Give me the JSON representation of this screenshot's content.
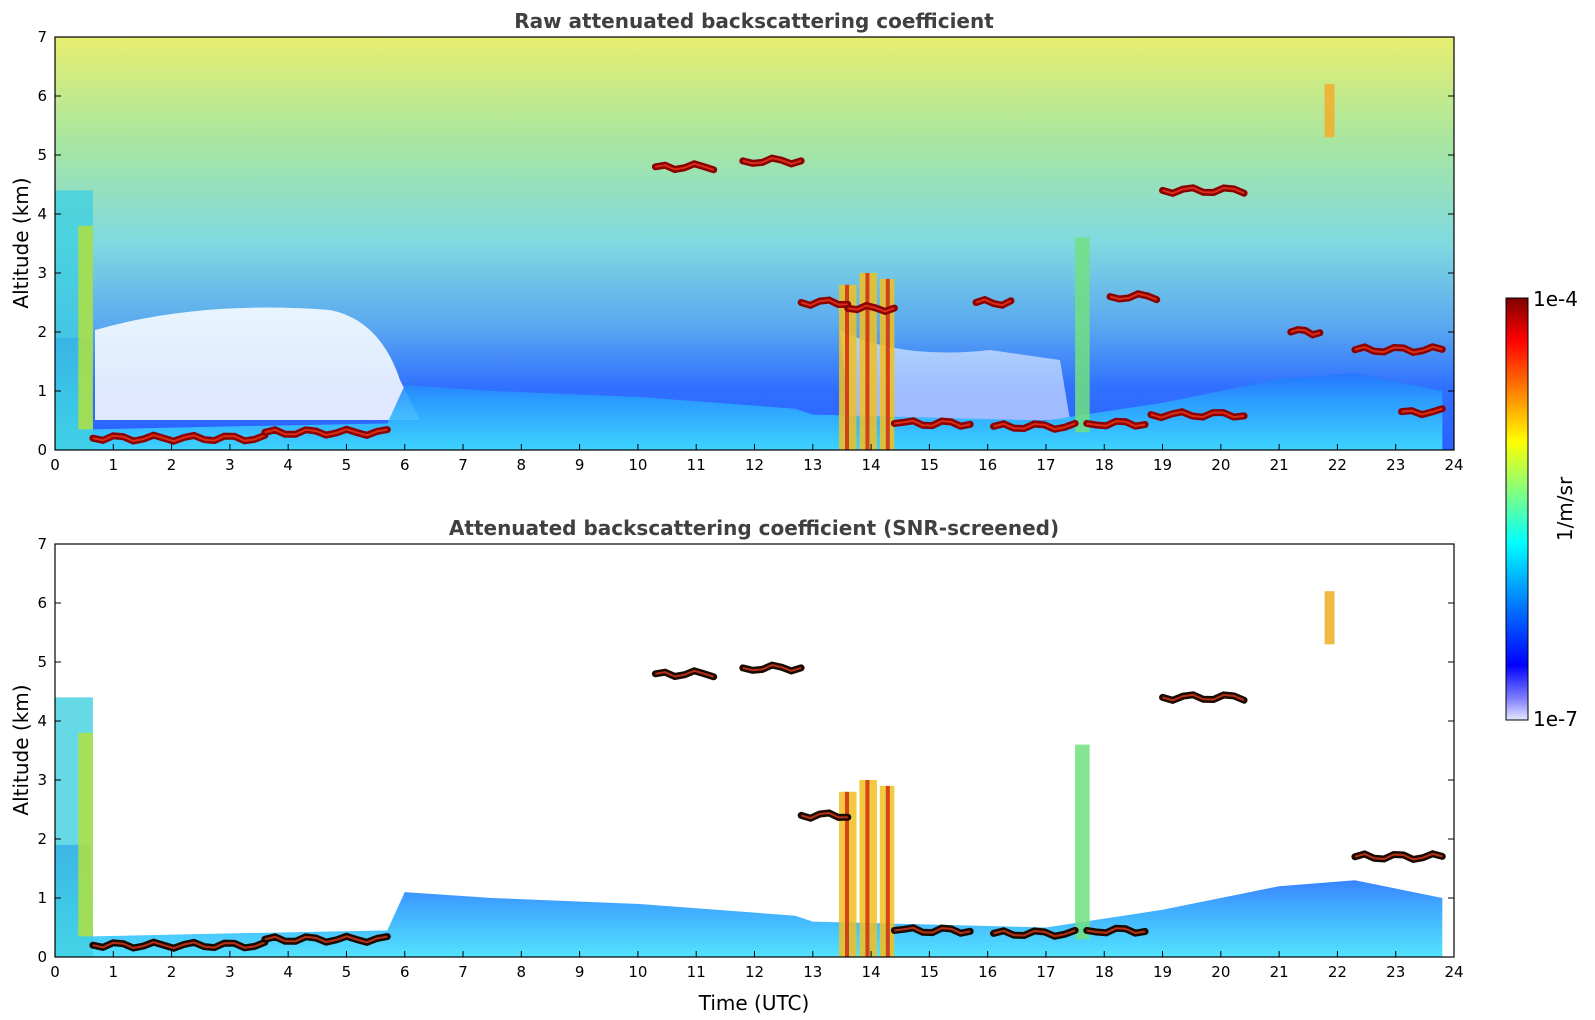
{
  "chart_data": [
    {
      "type": "heatmap",
      "title": "Raw attenuated backscattering coefficient",
      "xlabel": "",
      "ylabel": "Altitude (km)",
      "xlim": [
        0,
        24
      ],
      "ylim": [
        0,
        7
      ],
      "x_ticks": [
        0,
        1,
        2,
        3,
        4,
        5,
        6,
        7,
        8,
        9,
        10,
        11,
        12,
        13,
        14,
        15,
        16,
        17,
        18,
        19,
        20,
        21,
        22,
        23,
        24
      ],
      "y_ticks": [
        0,
        1,
        2,
        3,
        4,
        5,
        6,
        7
      ],
      "cloud_layers": [
        {
          "t0": 0.65,
          "t1": 3.6,
          "alt": 0.2
        },
        {
          "t0": 3.6,
          "t1": 5.7,
          "alt": 0.3
        },
        {
          "t0": 10.3,
          "t1": 11.3,
          "alt": 4.8
        },
        {
          "t0": 11.8,
          "t1": 12.8,
          "alt": 4.9
        },
        {
          "t0": 12.8,
          "t1": 13.6,
          "alt": 2.5
        },
        {
          "t0": 13.6,
          "t1": 14.4,
          "alt": 2.4
        },
        {
          "t0": 14.4,
          "t1": 15.7,
          "alt": 0.45
        },
        {
          "t0": 15.8,
          "t1": 16.4,
          "alt": 2.5
        },
        {
          "t0": 16.1,
          "t1": 17.5,
          "alt": 0.4
        },
        {
          "t0": 17.7,
          "t1": 18.7,
          "alt": 0.45
        },
        {
          "t0": 18.1,
          "t1": 18.9,
          "alt": 2.6
        },
        {
          "t0": 19.0,
          "t1": 20.4,
          "alt": 4.4
        },
        {
          "t0": 18.8,
          "t1": 20.4,
          "alt": 0.6
        },
        {
          "t0": 21.2,
          "t1": 21.7,
          "alt": 2.0
        },
        {
          "t0": 22.3,
          "t1": 23.8,
          "alt": 1.7
        },
        {
          "t0": 23.1,
          "t1": 23.8,
          "alt": 0.65
        }
      ]
    },
    {
      "type": "heatmap",
      "title": "Attenuated backscattering coefficient (SNR-screened)",
      "xlabel": "Time (UTC)",
      "ylabel": "Altitude (km)",
      "xlim": [
        0,
        24
      ],
      "ylim": [
        0,
        7
      ],
      "x_ticks": [
        0,
        1,
        2,
        3,
        4,
        5,
        6,
        7,
        8,
        9,
        10,
        11,
        12,
        13,
        14,
        15,
        16,
        17,
        18,
        19,
        20,
        21,
        22,
        23,
        24
      ],
      "y_ticks": [
        0,
        1,
        2,
        3,
        4,
        5,
        6,
        7
      ],
      "cloud_layers": [
        {
          "t0": 0.65,
          "t1": 3.6,
          "alt": 0.2
        },
        {
          "t0": 3.6,
          "t1": 5.7,
          "alt": 0.3
        },
        {
          "t0": 10.3,
          "t1": 11.3,
          "alt": 4.8
        },
        {
          "t0": 11.8,
          "t1": 12.8,
          "alt": 4.9
        },
        {
          "t0": 12.8,
          "t1": 13.6,
          "alt": 2.4
        },
        {
          "t0": 14.4,
          "t1": 15.7,
          "alt": 0.45
        },
        {
          "t0": 16.1,
          "t1": 17.5,
          "alt": 0.4
        },
        {
          "t0": 17.7,
          "t1": 18.7,
          "alt": 0.45
        },
        {
          "t0": 19.0,
          "t1": 20.4,
          "alt": 4.4
        },
        {
          "t0": 22.3,
          "t1": 23.8,
          "alt": 1.7
        }
      ]
    }
  ],
  "colorbar": {
    "label": "1/m/sr",
    "max_label": "1e-4",
    "min_label": "1e-7",
    "colors": [
      "#7f0000",
      "#ff0000",
      "#ff8000",
      "#ffff00",
      "#80ff80",
      "#00ffff",
      "#0080ff",
      "#0000ff",
      "#8080ff",
      "#e6e6ff"
    ]
  }
}
